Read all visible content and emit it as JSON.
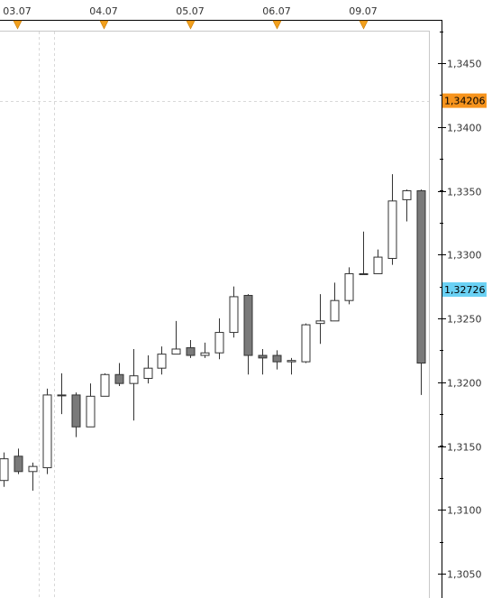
{
  "chart_data": {
    "type": "candlestick",
    "title": "",
    "xlabel": "",
    "ylabel": "",
    "ylim": [
      1.3025,
      1.3495
    ],
    "grid": false,
    "date_markers": [
      "03.07",
      "04.07",
      "05.07",
      "06.07",
      "09.07"
    ],
    "y_ticks": [
      "1,3450",
      "1,3400",
      "1,3350",
      "1,3300",
      "1,3250",
      "1,3200",
      "1,3150",
      "1,3100",
      "1,3050"
    ],
    "y_tick_values": [
      1.345,
      1.34,
      1.335,
      1.33,
      1.325,
      1.32,
      1.315,
      1.31,
      1.305
    ],
    "price_tags": [
      {
        "label": "1,34206",
        "value": 1.34206,
        "color": "#f7941d"
      },
      {
        "label": "1,32726",
        "value": 1.32726,
        "color": "#6ad1f4"
      }
    ],
    "candles": [
      {
        "open": 1.3123,
        "high": 1.3145,
        "low": 1.3118,
        "close": 1.314
      },
      {
        "open": 1.3142,
        "high": 1.3148,
        "low": 1.3128,
        "close": 1.313
      },
      {
        "open": 1.313,
        "high": 1.3137,
        "low": 1.3115,
        "close": 1.3134
      },
      {
        "open": 1.3133,
        "high": 1.3195,
        "low": 1.3128,
        "close": 1.319
      },
      {
        "open": 1.319,
        "high": 1.3207,
        "low": 1.3175,
        "close": 1.319
      },
      {
        "open": 1.319,
        "high": 1.3192,
        "low": 1.3157,
        "close": 1.3165
      },
      {
        "open": 1.3165,
        "high": 1.3199,
        "low": 1.3165,
        "close": 1.3189
      },
      {
        "open": 1.3189,
        "high": 1.3207,
        "low": 1.3189,
        "close": 1.3206
      },
      {
        "open": 1.3206,
        "high": 1.3215,
        "low": 1.3197,
        "close": 1.3199
      },
      {
        "open": 1.3199,
        "high": 1.3226,
        "low": 1.317,
        "close": 1.3205
      },
      {
        "open": 1.3203,
        "high": 1.3221,
        "low": 1.3199,
        "close": 1.3211
      },
      {
        "open": 1.3211,
        "high": 1.3228,
        "low": 1.3206,
        "close": 1.3222
      },
      {
        "open": 1.3222,
        "high": 1.3248,
        "low": 1.3222,
        "close": 1.3226
      },
      {
        "open": 1.3227,
        "high": 1.3233,
        "low": 1.3219,
        "close": 1.3221
      },
      {
        "open": 1.3221,
        "high": 1.3231,
        "low": 1.3219,
        "close": 1.3223
      },
      {
        "open": 1.3223,
        "high": 1.325,
        "low": 1.3218,
        "close": 1.3239
      },
      {
        "open": 1.3239,
        "high": 1.3275,
        "low": 1.3235,
        "close": 1.3267
      },
      {
        "open": 1.3268,
        "high": 1.3269,
        "low": 1.3206,
        "close": 1.3221
      },
      {
        "open": 1.3221,
        "high": 1.3226,
        "low": 1.3206,
        "close": 1.3219
      },
      {
        "open": 1.3221,
        "high": 1.3225,
        "low": 1.321,
        "close": 1.3216
      },
      {
        "open": 1.3216,
        "high": 1.3219,
        "low": 1.3206,
        "close": 1.3217
      },
      {
        "open": 1.3216,
        "high": 1.3246,
        "low": 1.3215,
        "close": 1.3245
      },
      {
        "open": 1.3246,
        "high": 1.3269,
        "low": 1.323,
        "close": 1.3248
      },
      {
        "open": 1.3248,
        "high": 1.3278,
        "low": 1.3248,
        "close": 1.3264
      },
      {
        "open": 1.3264,
        "high": 1.329,
        "low": 1.3261,
        "close": 1.3285
      },
      {
        "open": 1.3285,
        "high": 1.3318,
        "low": 1.3285,
        "close": 1.3285
      },
      {
        "open": 1.3285,
        "high": 1.3304,
        "low": 1.3285,
        "close": 1.3298
      },
      {
        "open": 1.3297,
        "high": 1.3363,
        "low": 1.3292,
        "close": 1.3342
      },
      {
        "open": 1.3343,
        "high": 1.3351,
        "low": 1.3326,
        "close": 1.335
      },
      {
        "open": 1.335,
        "high": 1.3351,
        "low": 1.319,
        "close": 1.3215
      }
    ]
  }
}
